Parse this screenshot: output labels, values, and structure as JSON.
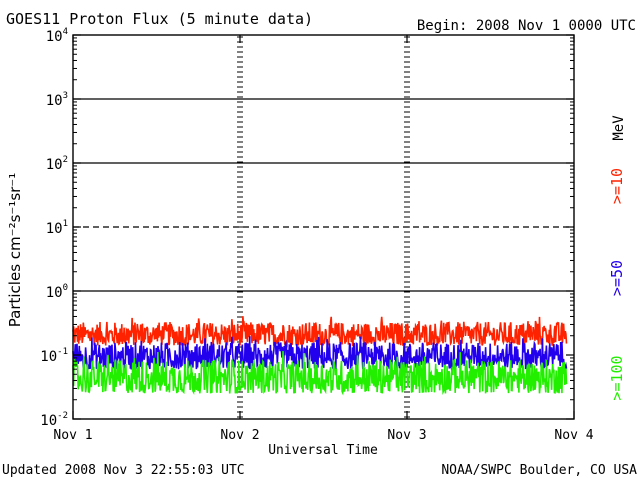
{
  "chart_data": {
    "type": "line",
    "title": "GOES11 Proton Flux (5 minute data)",
    "begin_label": "Begin: 2008 Nov 1 0000 UTC",
    "xlabel": "Universal Time",
    "ylabel": "Particles cm⁻²s⁻¹sr⁻¹",
    "x_ticks": [
      "Nov 1",
      "Nov 2",
      "Nov 3",
      "Nov 4"
    ],
    "xlim_days": [
      0,
      3
    ],
    "y_scale": "log",
    "ylim": [
      0.01,
      10000
    ],
    "y_ticks": [
      {
        "base": "10",
        "exp": "-2"
      },
      {
        "base": "10",
        "exp": "-1"
      },
      {
        "base": "10",
        "exp": "0"
      },
      {
        "base": "10",
        "exp": "1"
      },
      {
        "base": "10",
        "exp": "2"
      },
      {
        "base": "10",
        "exp": "3"
      },
      {
        "base": "10",
        "exp": "4"
      }
    ],
    "threshold_lines": [
      {
        "value": 1,
        "style": "solid"
      },
      {
        "value": 10,
        "style": "dashed"
      },
      {
        "value": 100,
        "style": "solid"
      },
      {
        "value": 1000,
        "style": "solid"
      }
    ],
    "unit_label": "MeV",
    "series": [
      {
        "name": ">=10",
        "color": "#ff2200",
        "typical_low": 0.14,
        "typical_high": 0.33
      },
      {
        "name": ">=50",
        "color": "#2200ee",
        "typical_low": 0.06,
        "typical_high": 0.16
      },
      {
        "name": ">=100",
        "color": "#22ee00",
        "typical_low": 0.025,
        "typical_high": 0.085
      }
    ]
  },
  "footer": {
    "updated": "Updated 2008 Nov  3 22:55:03 UTC",
    "source": "NOAA/SWPC Boulder, CO USA"
  }
}
